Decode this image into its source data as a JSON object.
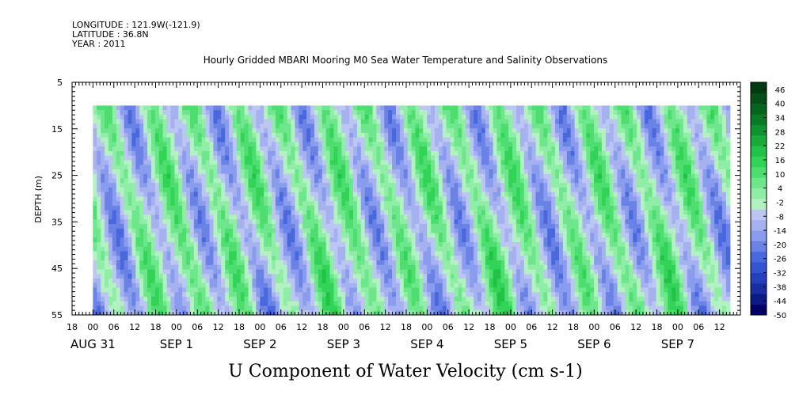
{
  "header": {
    "longitude": "LONGITUDE : 121.9W(-121.9)",
    "latitude": "LATITUDE : 36.8N",
    "year": "YEAR : 2011"
  },
  "chart_data": {
    "type": "heatmap",
    "title": "Hourly Gridded MBARI Mooring M0 Sea Water Temperature and Salinity Observations",
    "xlabel": "U Component of Water Velocity (cm s-1)",
    "ylabel": "DEPTH (m)",
    "y_ticks": [
      5,
      15,
      25,
      35,
      45,
      55
    ],
    "ylim": [
      5,
      55
    ],
    "data_depth_range": [
      10,
      55
    ],
    "x_hour_ticks": [
      "18",
      "00",
      "06",
      "12",
      "18",
      "00",
      "06",
      "12",
      "18",
      "00",
      "06",
      "12",
      "18",
      "00",
      "06",
      "12",
      "18",
      "00",
      "06",
      "12",
      "18",
      "00",
      "06",
      "12",
      "18",
      "00",
      "06",
      "12",
      "18",
      "00",
      "06",
      "12"
    ],
    "x_start": "2011-08-30 18:00",
    "x_end": "2011-09-07 18:00",
    "data_time_range": [
      "2011-08-31 00:00",
      "2011-09-07 15:00"
    ],
    "date_labels": [
      {
        "label": "AUG 31",
        "at": "2011-08-31 00:00"
      },
      {
        "label": "SEP  1",
        "at": "2011-09-01 00:00"
      },
      {
        "label": "SEP  2",
        "at": "2011-09-02 00:00"
      },
      {
        "label": "SEP  3",
        "at": "2011-09-03 00:00"
      },
      {
        "label": "SEP  4",
        "at": "2011-09-04 00:00"
      },
      {
        "label": "SEP  5",
        "at": "2011-09-05 00:00"
      },
      {
        "label": "SEP  6",
        "at": "2011-09-06 00:00"
      },
      {
        "label": "SEP  7",
        "at": "2011-09-07 00:00"
      }
    ],
    "colorbar": {
      "labels": [
        "46",
        "40",
        "34",
        "28",
        "22",
        "16",
        "10",
        "4",
        "-2",
        "-8",
        "-14",
        "-20",
        "-26",
        "-32",
        "-38",
        "-44",
        "-50"
      ],
      "min": -50,
      "max": 49,
      "step": 3,
      "colors_low_to_high": [
        "#000066",
        "#0c1a86",
        "#1a2ea3",
        "#2440bd",
        "#3454d2",
        "#4a68de",
        "#6a82e6",
        "#8a9ced",
        "#a6b2f0",
        "#bcc6f2",
        "#b2f2c2",
        "#90eda6",
        "#6ee68c",
        "#4ede70",
        "#32d458",
        "#22c248",
        "#18aa3a",
        "#0f9230",
        "#0a7a27",
        "#07641f",
        "#054f18",
        "#033b11"
      ]
    },
    "grid": false,
    "legend": "right"
  }
}
